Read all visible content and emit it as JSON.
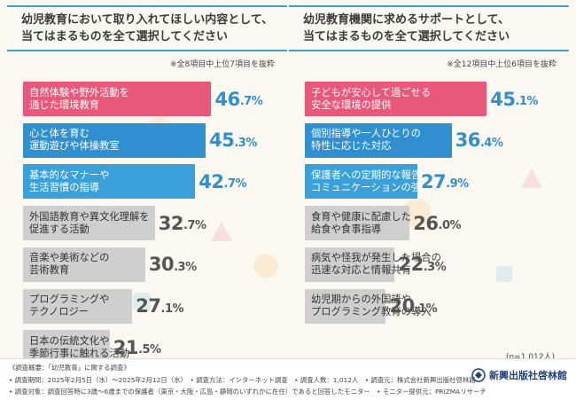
{
  "colors": {
    "accent_line": "#3aa0d4",
    "pink": "#e9577a",
    "blue": "#2f8fcf",
    "blue_light": "#3aa0d9",
    "gray": "#cfcfcf",
    "value_highlight": "#2f8fcf",
    "value_plain": "#555555"
  },
  "chart_data": [
    {
      "type": "bar",
      "orientation": "horizontal",
      "title": [
        "幼児教育において取り入れてほしい内容として、",
        "当てはまるものを全て選択してください"
      ],
      "note": "※全8項目中上位7項目を抜粋",
      "unit": "%",
      "categories": [
        [
          "自然体験や野外活動を",
          "通じた環境教育"
        ],
        [
          "心と体を育む",
          "運動遊びや体操教室"
        ],
        [
          "基本的なマナーや",
          "生活習慣の指導"
        ],
        [
          "外国語教育や異文化理解を",
          "促進する活動"
        ],
        [
          "音楽や美術などの",
          "芸術教育"
        ],
        [
          "プログラミングや",
          "テクノロジー"
        ],
        [
          "日本の伝統文化や",
          "季節行事に触れる活動"
        ]
      ],
      "values": [
        46.7,
        45.3,
        42.7,
        32.7,
        30.3,
        27.1,
        21.5
      ],
      "value_labels": [
        {
          "int": "46",
          "dec": ".7%"
        },
        {
          "int": "45",
          "dec": ".3%"
        },
        {
          "int": "42",
          "dec": ".7%"
        },
        {
          "int": "32",
          "dec": ".7%"
        },
        {
          "int": "30",
          "dec": ".3%"
        },
        {
          "int": "27",
          "dec": ".1%"
        },
        {
          "int": "21",
          "dec": ".5%"
        }
      ],
      "bar_colors": [
        "pink",
        "blue",
        "blue_light",
        "gray",
        "gray",
        "gray",
        "gray"
      ]
    },
    {
      "type": "bar",
      "orientation": "horizontal",
      "title": [
        "幼児教育機関に求めるサポートとして、",
        "当てはまるものを全て選択してください"
      ],
      "note": "※全12項目中上位6項目を抜粋",
      "unit": "%",
      "categories": [
        [
          "子どもが安心して過ごせる",
          "安全な環境の提供"
        ],
        [
          "個別指導や一人ひとりの",
          "特性に応じた対応"
        ],
        [
          "保護者への定期的な報告や",
          "コミュニケーションの強化"
        ],
        [
          "食育や健康に配慮した",
          "給食や食事指導"
        ],
        [
          "病気や怪我が発生した場合の",
          "迅速な対応と情報共有"
        ],
        [
          "幼児期からの外国語や",
          "プログラミング教育の導入"
        ]
      ],
      "values": [
        45.1,
        36.4,
        27.9,
        26.0,
        22.3,
        20.1
      ],
      "value_labels": [
        {
          "int": "45",
          "dec": ".1%"
        },
        {
          "int": "36",
          "dec": ".4%"
        },
        {
          "int": "27",
          "dec": ".9%"
        },
        {
          "int": "26",
          "dec": ".0%"
        },
        {
          "int": "22",
          "dec": ".3%"
        },
        {
          "int": "20",
          "dec": ".1%"
        }
      ],
      "bar_colors": [
        "pink",
        "blue",
        "blue_light",
        "gray",
        "gray",
        "gray"
      ]
    }
  ],
  "sample_note": "(n=1,012人)",
  "footer": {
    "lines": [
      "《調査概要：「幼児教育」に関する調査》",
      "• 調査期間：2025年2月5日（水）～2025年2月12日（水）　• 調査方法：インターネット調査　• 調査人数：1,012人　• 調査元：株式会社新興出版社啓林館",
      "• 調査対象：調査回答時に3歳～6歳までの保護者（東京・大阪・広島・静岡のいずれかに在住）であると回答したモニター　• モニター提供元：PRIZMAリサーチ"
    ],
    "logo_text": "新興出版社啓林館"
  }
}
